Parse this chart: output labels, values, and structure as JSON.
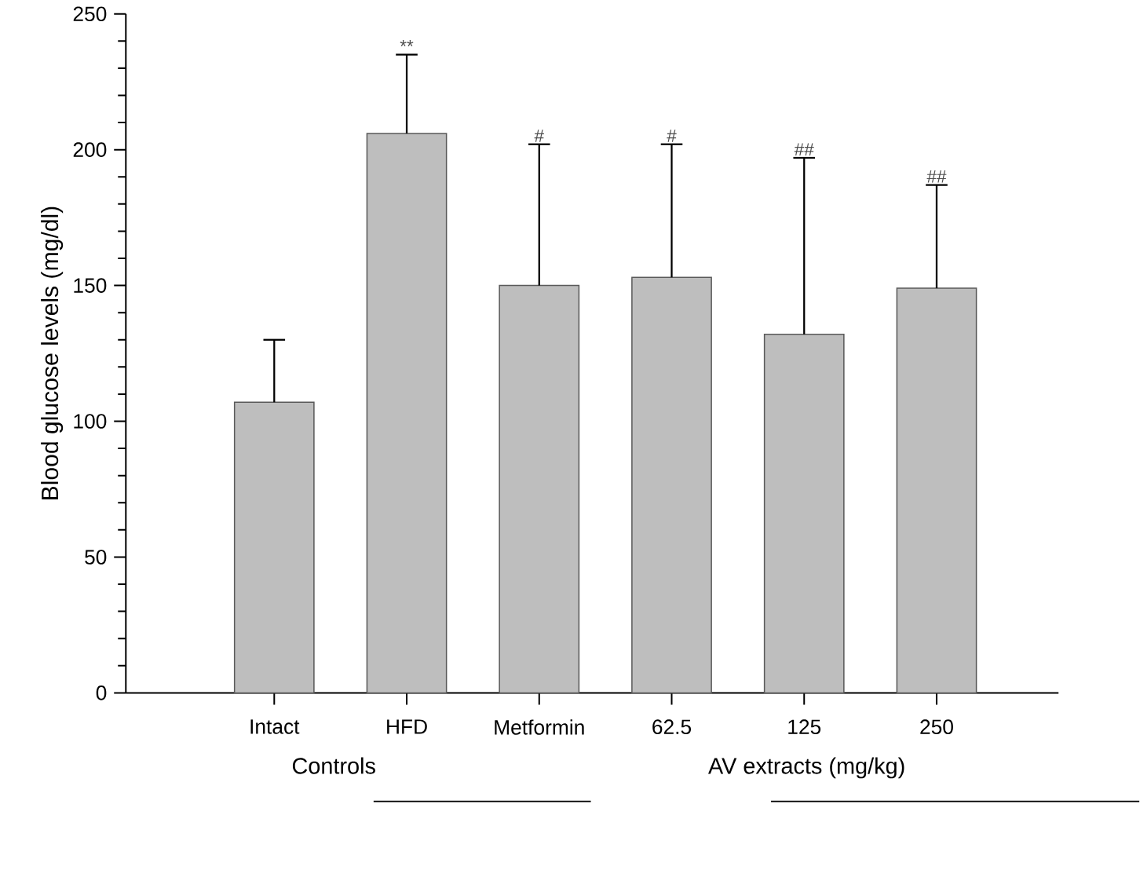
{
  "chart_data": {
    "type": "bar",
    "ylabel": "Blood glucose levels (mg/dl)",
    "categories": [
      "Intact",
      "HFD",
      "Metformin",
      "62.5",
      "125",
      "250"
    ],
    "values": [
      107,
      206,
      150,
      153,
      132,
      149
    ],
    "errors": [
      [
        107,
        130
      ],
      [
        206,
        235
      ],
      [
        150,
        202
      ],
      [
        153,
        202
      ],
      [
        132,
        197
      ],
      [
        149,
        187
      ]
    ],
    "color": "#bebebe",
    "ylim": [
      0,
      250
    ],
    "yticks": [
      0,
      50,
      100,
      150,
      200,
      250
    ],
    "grid": false,
    "annotations": [
      {
        "text": "**",
        "x": "HFD",
        "y": 235
      },
      {
        "text": "#",
        "x": "Metformin",
        "y": 202
      },
      {
        "text": "#",
        "x": "62.5",
        "y": 202
      },
      {
        "text": "##",
        "x": "125",
        "y": 197
      },
      {
        "text": "##",
        "x": "250",
        "y": 187
      },
      "Controls",
      "AV extracts (mg/kg)"
    ]
  }
}
